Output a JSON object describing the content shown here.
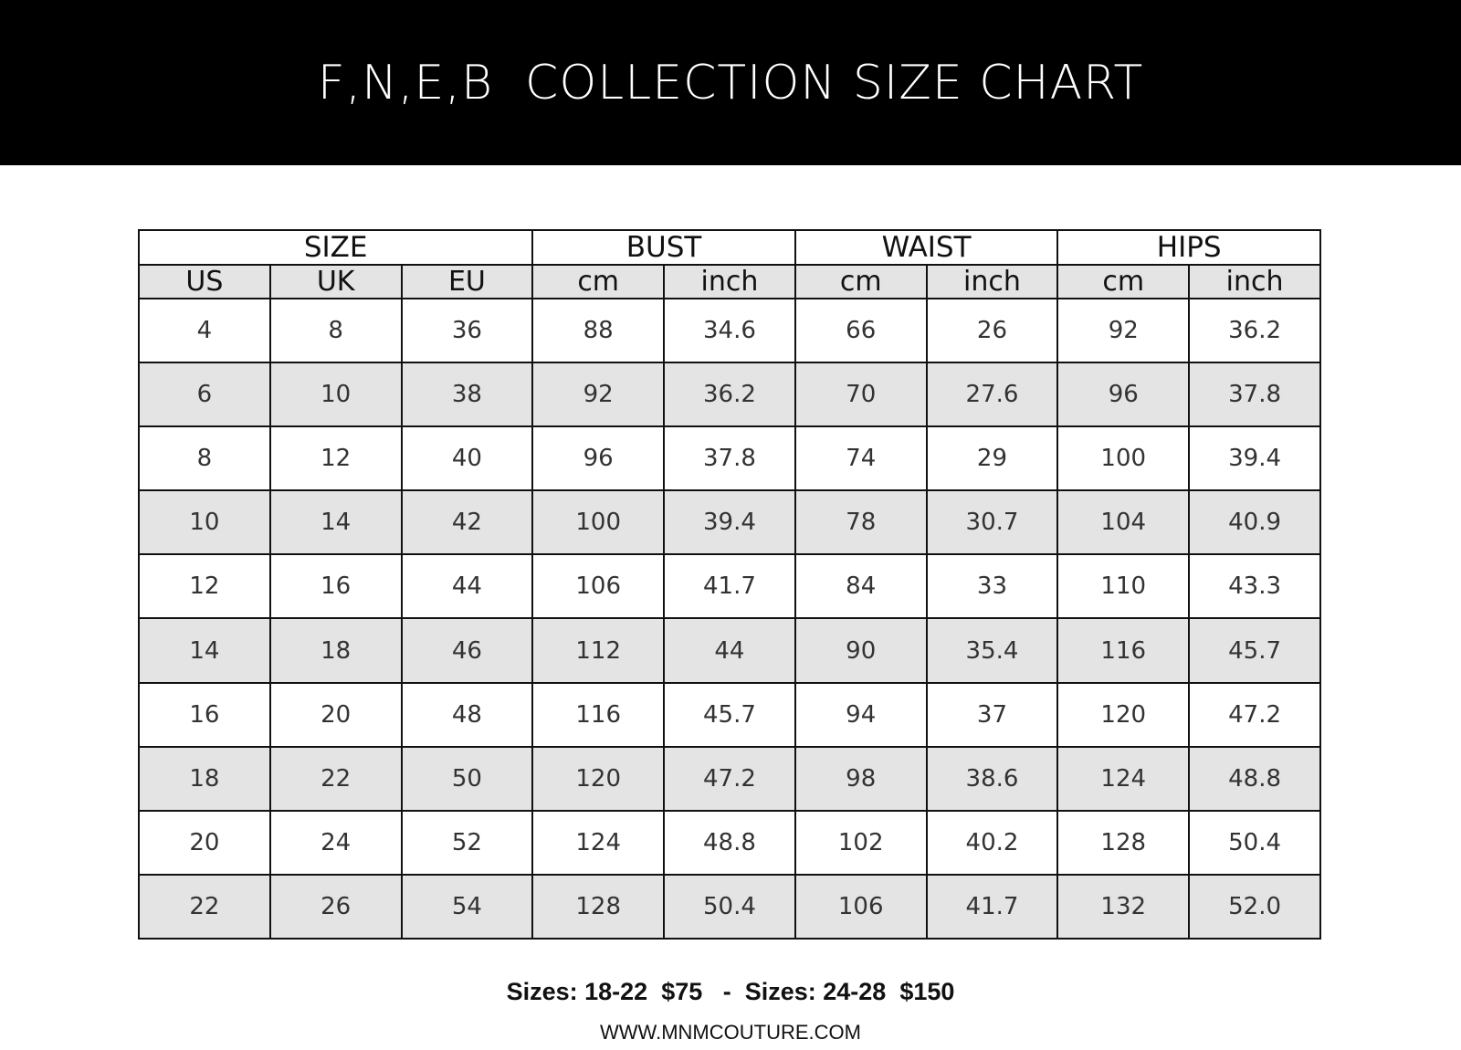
{
  "title": "F,N,E,B  COLLECTION SIZE CHART",
  "groups": [
    "SIZE",
    "BUST",
    "WAIST",
    "HIPS"
  ],
  "subheaders": [
    "US",
    "UK",
    "EU",
    "cm",
    "inch",
    "cm",
    "inch",
    "cm",
    "inch"
  ],
  "rows": [
    [
      "4",
      "8",
      "36",
      "88",
      "34.6",
      "66",
      "26",
      "92",
      "36.2"
    ],
    [
      "6",
      "10",
      "38",
      "92",
      "36.2",
      "70",
      "27.6",
      "96",
      "37.8"
    ],
    [
      "8",
      "12",
      "40",
      "96",
      "37.8",
      "74",
      "29",
      "100",
      "39.4"
    ],
    [
      "10",
      "14",
      "42",
      "100",
      "39.4",
      "78",
      "30.7",
      "104",
      "40.9"
    ],
    [
      "12",
      "16",
      "44",
      "106",
      "41.7",
      "84",
      "33",
      "110",
      "43.3"
    ],
    [
      "14",
      "18",
      "46",
      "112",
      "44",
      "90",
      "35.4",
      "116",
      "45.7"
    ],
    [
      "16",
      "20",
      "48",
      "116",
      "45.7",
      "94",
      "37",
      "120",
      "47.2"
    ],
    [
      "18",
      "22",
      "50",
      "120",
      "47.2",
      "98",
      "38.6",
      "124",
      "48.8"
    ],
    [
      "20",
      "24",
      "52",
      "124",
      "48.8",
      "102",
      "40.2",
      "128",
      "50.4"
    ],
    [
      "22",
      "26",
      "54",
      "128",
      "50.4",
      "106",
      "41.7",
      "132",
      "52.0"
    ]
  ],
  "pricing": "Sizes: 18-22  $75   -  Sizes: 24-28  $150",
  "website": "WWW.MNMCOUTURE.COM",
  "colors": {
    "banner": "#000000",
    "alt_row": "#e4e4e4"
  }
}
